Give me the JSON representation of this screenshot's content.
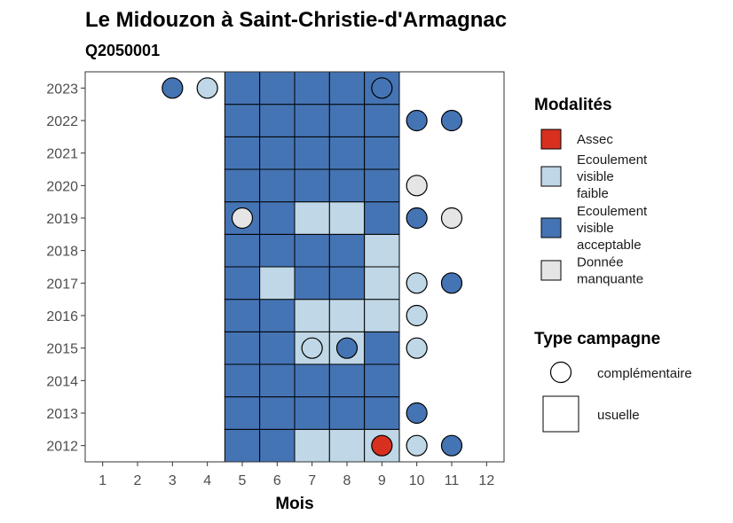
{
  "chart_data": {
    "type": "heatmap",
    "title": "Le Midouzon à Saint-Christie-d'Armagnac",
    "subtitle": "Q2050001",
    "xlabel": "Mois",
    "ylabel": "",
    "x_ticks": [
      1,
      2,
      3,
      4,
      5,
      6,
      7,
      8,
      9,
      10,
      11,
      12
    ],
    "y_ticks": [
      2012,
      2013,
      2014,
      2015,
      2016,
      2017,
      2018,
      2019,
      2020,
      2021,
      2022,
      2023
    ],
    "xlim": [
      0.5,
      12.5
    ],
    "ylim": [
      2011.5,
      2023.5
    ],
    "grid": false,
    "legend_position": "right",
    "categories": [
      {
        "key": "assec",
        "label": "Assec",
        "color": "#d7301f"
      },
      {
        "key": "faible",
        "label": "Ecoulement visible faible",
        "color": "#bfd7e6"
      },
      {
        "key": "acceptable",
        "label": "Ecoulement visible acceptable",
        "color": "#4574b4"
      },
      {
        "key": "manquante",
        "label": "Donnée manquante",
        "color": "#e5e5e5"
      }
    ],
    "campaign_types": [
      {
        "key": "complementaire",
        "label": "complémentaire",
        "shape": "circle"
      },
      {
        "key": "usuelle",
        "label": "usuelle",
        "shape": "square"
      }
    ],
    "legend_titles": {
      "modalites": "Modalités",
      "campagne": "Type campagne"
    },
    "usuelle": [
      {
        "year": 2012,
        "month": 5,
        "cat": "acceptable"
      },
      {
        "year": 2012,
        "month": 6,
        "cat": "acceptable"
      },
      {
        "year": 2012,
        "month": 7,
        "cat": "faible"
      },
      {
        "year": 2012,
        "month": 8,
        "cat": "faible"
      },
      {
        "year": 2012,
        "month": 9,
        "cat": "faible"
      },
      {
        "year": 2013,
        "month": 5,
        "cat": "acceptable"
      },
      {
        "year": 2013,
        "month": 6,
        "cat": "acceptable"
      },
      {
        "year": 2013,
        "month": 7,
        "cat": "acceptable"
      },
      {
        "year": 2013,
        "month": 8,
        "cat": "acceptable"
      },
      {
        "year": 2013,
        "month": 9,
        "cat": "acceptable"
      },
      {
        "year": 2014,
        "month": 5,
        "cat": "acceptable"
      },
      {
        "year": 2014,
        "month": 6,
        "cat": "acceptable"
      },
      {
        "year": 2014,
        "month": 7,
        "cat": "acceptable"
      },
      {
        "year": 2014,
        "month": 8,
        "cat": "acceptable"
      },
      {
        "year": 2014,
        "month": 9,
        "cat": "acceptable"
      },
      {
        "year": 2015,
        "month": 5,
        "cat": "acceptable"
      },
      {
        "year": 2015,
        "month": 6,
        "cat": "acceptable"
      },
      {
        "year": 2015,
        "month": 7,
        "cat": "faible"
      },
      {
        "year": 2015,
        "month": 8,
        "cat": "faible"
      },
      {
        "year": 2015,
        "month": 9,
        "cat": "acceptable"
      },
      {
        "year": 2016,
        "month": 5,
        "cat": "acceptable"
      },
      {
        "year": 2016,
        "month": 6,
        "cat": "acceptable"
      },
      {
        "year": 2016,
        "month": 7,
        "cat": "faible"
      },
      {
        "year": 2016,
        "month": 8,
        "cat": "faible"
      },
      {
        "year": 2016,
        "month": 9,
        "cat": "faible"
      },
      {
        "year": 2017,
        "month": 5,
        "cat": "acceptable"
      },
      {
        "year": 2017,
        "month": 6,
        "cat": "faible"
      },
      {
        "year": 2017,
        "month": 7,
        "cat": "acceptable"
      },
      {
        "year": 2017,
        "month": 8,
        "cat": "acceptable"
      },
      {
        "year": 2017,
        "month": 9,
        "cat": "faible"
      },
      {
        "year": 2018,
        "month": 5,
        "cat": "acceptable"
      },
      {
        "year": 2018,
        "month": 6,
        "cat": "acceptable"
      },
      {
        "year": 2018,
        "month": 7,
        "cat": "acceptable"
      },
      {
        "year": 2018,
        "month": 8,
        "cat": "acceptable"
      },
      {
        "year": 2018,
        "month": 9,
        "cat": "faible"
      },
      {
        "year": 2019,
        "month": 5,
        "cat": "acceptable"
      },
      {
        "year": 2019,
        "month": 6,
        "cat": "acceptable"
      },
      {
        "year": 2019,
        "month": 7,
        "cat": "faible"
      },
      {
        "year": 2019,
        "month": 8,
        "cat": "faible"
      },
      {
        "year": 2019,
        "month": 9,
        "cat": "acceptable"
      },
      {
        "year": 2020,
        "month": 5,
        "cat": "acceptable"
      },
      {
        "year": 2020,
        "month": 6,
        "cat": "acceptable"
      },
      {
        "year": 2020,
        "month": 7,
        "cat": "acceptable"
      },
      {
        "year": 2020,
        "month": 8,
        "cat": "acceptable"
      },
      {
        "year": 2020,
        "month": 9,
        "cat": "acceptable"
      },
      {
        "year": 2021,
        "month": 5,
        "cat": "acceptable"
      },
      {
        "year": 2021,
        "month": 6,
        "cat": "acceptable"
      },
      {
        "year": 2021,
        "month": 7,
        "cat": "acceptable"
      },
      {
        "year": 2021,
        "month": 8,
        "cat": "acceptable"
      },
      {
        "year": 2021,
        "month": 9,
        "cat": "acceptable"
      },
      {
        "year": 2022,
        "month": 5,
        "cat": "acceptable"
      },
      {
        "year": 2022,
        "month": 6,
        "cat": "acceptable"
      },
      {
        "year": 2022,
        "month": 7,
        "cat": "acceptable"
      },
      {
        "year": 2022,
        "month": 8,
        "cat": "acceptable"
      },
      {
        "year": 2022,
        "month": 9,
        "cat": "acceptable"
      },
      {
        "year": 2023,
        "month": 5,
        "cat": "acceptable"
      },
      {
        "year": 2023,
        "month": 6,
        "cat": "acceptable"
      },
      {
        "year": 2023,
        "month": 7,
        "cat": "acceptable"
      },
      {
        "year": 2023,
        "month": 8,
        "cat": "acceptable"
      },
      {
        "year": 2023,
        "month": 9,
        "cat": "acceptable"
      }
    ],
    "complementaire": [
      {
        "year": 2023,
        "month": 3,
        "cat": "acceptable"
      },
      {
        "year": 2023,
        "month": 4,
        "cat": "faible"
      },
      {
        "year": 2023,
        "month": 9,
        "cat": "acceptable"
      },
      {
        "year": 2022,
        "month": 10,
        "cat": "acceptable"
      },
      {
        "year": 2022,
        "month": 11,
        "cat": "acceptable"
      },
      {
        "year": 2020,
        "month": 10,
        "cat": "manquante"
      },
      {
        "year": 2019,
        "month": 5,
        "cat": "manquante"
      },
      {
        "year": 2019,
        "month": 10,
        "cat": "acceptable"
      },
      {
        "year": 2019,
        "month": 11,
        "cat": "manquante"
      },
      {
        "year": 2017,
        "month": 10,
        "cat": "faible"
      },
      {
        "year": 2017,
        "month": 11,
        "cat": "acceptable"
      },
      {
        "year": 2016,
        "month": 10,
        "cat": "faible"
      },
      {
        "year": 2015,
        "month": 7,
        "cat": "faible"
      },
      {
        "year": 2015,
        "month": 8,
        "cat": "acceptable"
      },
      {
        "year": 2015,
        "month": 10,
        "cat": "faible"
      },
      {
        "year": 2013,
        "month": 10,
        "cat": "acceptable"
      },
      {
        "year": 2012,
        "month": 9,
        "cat": "assec"
      },
      {
        "year": 2012,
        "month": 10,
        "cat": "faible"
      },
      {
        "year": 2012,
        "month": 11,
        "cat": "acceptable"
      }
    ]
  }
}
